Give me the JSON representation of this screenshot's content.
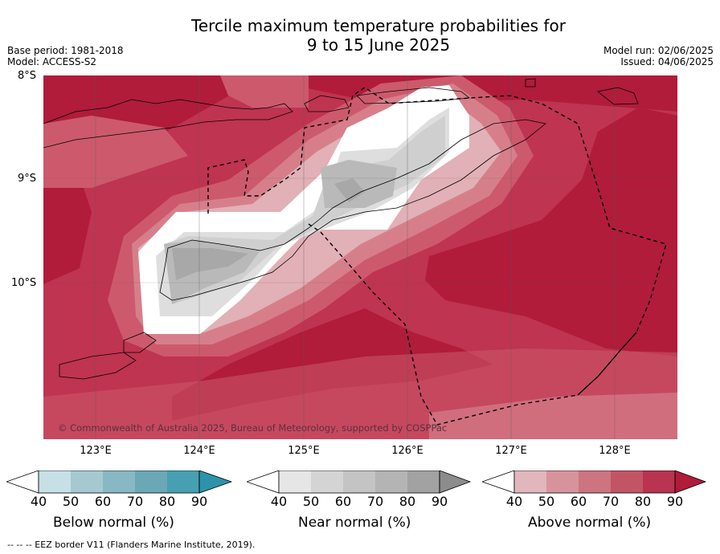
{
  "title": {
    "line1": "Tercile maximum temperature probabilities for",
    "line2": "9 to 15 June 2025"
  },
  "meta_left": {
    "base_period": "Base period: 1981-2018",
    "model": "Model: ACCESS-S2"
  },
  "meta_right": {
    "model_run": "Model run: 02/06/2025",
    "issued": "Issued: 04/06/2025"
  },
  "map": {
    "lat_labels": [
      "8°S",
      "9°S",
      "10°S"
    ],
    "lon_labels": [
      "123°E",
      "124°E",
      "125°E",
      "126°E",
      "127°E",
      "128°E"
    ],
    "copyright": "© Commonwealth of Australia 2025, Bureau of Meteorology, supported by COSPPac",
    "colors": {
      "above_90": "#b01c3a",
      "above_80": "#bf3450",
      "above_70": "#cc5a6c",
      "above_60": "#d67f8b",
      "above_50": "#e2b0b7",
      "near_neutral": "#ffffff",
      "near_50": "#dedede",
      "near_60": "#cfcfcf",
      "near_70": "#b9b9b9",
      "near_80": "#a8a8a8"
    }
  },
  "colorbars": {
    "below": {
      "label": "Below normal (%)",
      "ticks": [
        "40",
        "50",
        "60",
        "70",
        "80",
        "90"
      ],
      "colors": [
        "#ffffff",
        "#c6e0e6",
        "#a6c9d0",
        "#88b8c3",
        "#6aa8b6",
        "#46a0b2",
        "#2c94aa"
      ]
    },
    "near": {
      "label": "Near normal (%)",
      "ticks": [
        "40",
        "50",
        "60",
        "70",
        "80",
        "90"
      ],
      "colors": [
        "#ffffff",
        "#e6e6e6",
        "#d4d4d4",
        "#c4c4c4",
        "#b4b4b4",
        "#a2a2a2",
        "#8c8c8c"
      ]
    },
    "above": {
      "label": "Above normal (%)",
      "ticks": [
        "40",
        "50",
        "60",
        "70",
        "80",
        "90"
      ],
      "colors": [
        "#ffffff",
        "#e2b6bd",
        "#d7939c",
        "#cc747f",
        "#c25565",
        "#b83450",
        "#b01c3a"
      ]
    }
  },
  "footnote": "--  --  -- EEZ border V11 (Flanders Marine Institute, 2019)."
}
